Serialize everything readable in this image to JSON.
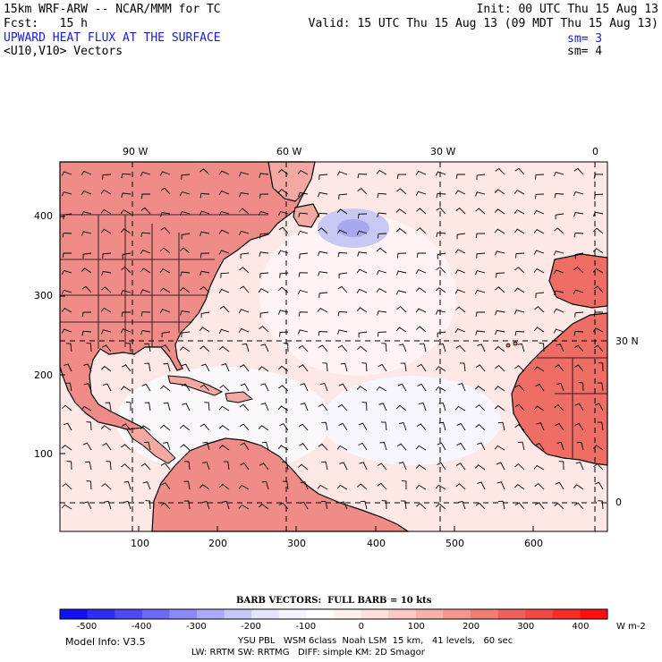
{
  "header": {
    "model_line": "15km WRF-ARW -- NCAR/MMM for TC",
    "init": "Init: 00 UTC Thu 15 Aug 13",
    "fcst": "Fcst:   15 h",
    "valid": "Valid: 15 UTC Thu 15 Aug 13 (09 MDT Thu 15 Aug 13)",
    "field": "UPWARD HEAT FLUX AT THE SURFACE",
    "sm1": "sm= 3",
    "vectors": "<U10,V10> Vectors",
    "sm2": "sm= 4"
  },
  "map": {
    "lon_labels": [
      "90 W",
      "60 W",
      "30 W",
      "0"
    ],
    "lat_labels": [
      "30 N",
      "0"
    ],
    "y_ticks": [
      "400",
      "300",
      "200",
      "100"
    ],
    "x_ticks": [
      "100",
      "200",
      "300",
      "400",
      "500",
      "600"
    ],
    "ocean_color": "#fde8e6",
    "land_color": "#f08c88"
  },
  "legend": {
    "barb_title": "BARB VECTORS:  FULL BARB = 10 kts",
    "labels": [
      "-500",
      "-400",
      "-300",
      "-200",
      "-100",
      "0",
      "100",
      "200",
      "300",
      "400"
    ],
    "unit": "W m-2",
    "colors": [
      "#1010f0",
      "#2e2ef0",
      "#4b4bf0",
      "#6a6af4",
      "#8a8af6",
      "#aaaaf8",
      "#c8c8fa",
      "#e4e4fc",
      "#f4f4ff",
      "#ffffff",
      "#fff0f0",
      "#fde0de",
      "#fbcac6",
      "#f8b0aa",
      "#f4968e",
      "#f07c74",
      "#ec625a",
      "#ee4a42",
      "#f43026",
      "#ff1010"
    ]
  },
  "footer": {
    "model_info": "Model Info: V3.5",
    "line1": "YSU PBL   WSM 6class  Noah LSM  15 km,   41 levels,   60 sec",
    "line2": "LW: RRTM SW: RRTMG   DIFF: simple KM: 2D Smagor"
  }
}
